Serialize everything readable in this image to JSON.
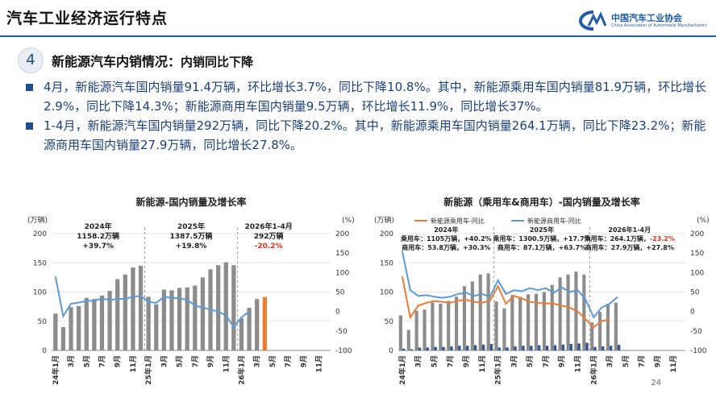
{
  "header": {
    "title": "汽车工业经济运行特点",
    "logo_cn": "中国汽车工业协会",
    "logo_en": "China Association of Automobile Manufacturers"
  },
  "section": {
    "number": "4",
    "title": "新能源汽车内销情况：",
    "subtitle": "内销同比下降"
  },
  "bullets": [
    "4月，新能源汽车国内销量91.4万辆，环比增长3.7%，同比下降10.8%。其中，新能源乘用车国内销量81.9万辆，环比增长2.9%，同比下降14.3%；新能源商用车国内销量9.5万辆，环比增长11.9%，同比增长37%。",
    "1-4月，新能源汽车国内销量292万辆，同比下降20.2%。其中，新能源乘用车国内销量264.1万辆，同比下降23.2%；新能源商用车国内销量27.9万辆，同比增长27.8%。"
  ],
  "page_number": "24",
  "colors": {
    "brand": "#1f5ba8",
    "bar": "#8c8c8c",
    "highlight_bar": "#ed7d31",
    "line_blue": "#5b9bd5",
    "line_orange": "#ed7d31",
    "negative_red": "#e03020",
    "commercial_bar": "#2f5597"
  },
  "chart_data": [
    {
      "type": "bar",
      "title": "新能源-国内销量及增长率",
      "ylabel": "(万辆)",
      "y2label": "(%)",
      "ylim": [
        0,
        200
      ],
      "y2lim": [
        -100,
        200
      ],
      "yticks": [
        "0",
        "50",
        "100",
        "150",
        "200"
      ],
      "y2ticks": [
        "-100",
        "-50",
        "0",
        "50",
        "100",
        "150",
        "200"
      ],
      "tick_labels": [
        "2024年1月",
        "3月",
        "5月",
        "7月",
        "9月",
        "11月",
        "2025年1月",
        "3月",
        "5月",
        "7月",
        "9月",
        "11月",
        "2026年1月",
        "3月",
        "5月",
        "7月",
        "9月",
        "11月"
      ],
      "series": [
        {
          "name": "",
          "kind": "bar",
          "values": [
            63,
            40,
            74,
            76,
            90,
            88,
            94,
            102,
            122,
            130,
            142,
            145,
            92,
            79,
            104,
            103,
            107,
            108,
            111,
            125,
            139,
            146,
            151,
            146,
            55,
            73,
            88,
            91.4,
            null,
            null,
            null,
            null,
            null,
            null,
            null,
            null
          ]
        },
        {
          "name": "",
          "kind": "line",
          "values": [
            90,
            -12,
            20,
            23,
            27,
            28,
            33,
            30,
            32,
            33,
            38,
            40,
            25,
            22,
            38,
            35,
            34,
            30,
            15,
            10,
            5,
            0,
            -10,
            -40,
            -15,
            0,
            null,
            null,
            null,
            null,
            null,
            null,
            null,
            null,
            null,
            null
          ]
        }
      ],
      "annotations": [
        {
          "year": "2024年",
          "total": "1158.2万辆",
          "growth": "+39.7%"
        },
        {
          "year": "2025年",
          "total": "1387.5万辆",
          "growth": "+19.8%"
        },
        {
          "year": "2026年1-4月",
          "total": "292万辆",
          "growth": "-20.2%"
        }
      ]
    },
    {
      "type": "bar",
      "title": "新能源（乘用车&商用车）-国内销量及增长率",
      "ylabel": "(万辆)",
      "y2label": "(%)",
      "ylim": [
        0,
        200
      ],
      "y2lim": [
        -100,
        200
      ],
      "yticks": [
        "0",
        "50",
        "100",
        "150",
        "200"
      ],
      "y2ticks": [
        "-100",
        "-50",
        "0",
        "50",
        "100",
        "150",
        "200"
      ],
      "tick_labels": [
        "2024年1月",
        "3月",
        "5月",
        "7月",
        "9月",
        "11月",
        "2025年1月",
        "3月",
        "5月",
        "7月",
        "9月",
        "11月",
        "2026年1月",
        "3月",
        "5月",
        "7月",
        "9月",
        "11月"
      ],
      "legend": [
        "新能源乘用车-同比",
        "新能源商用车-同比"
      ],
      "series": [
        {
          "name": "乘用车",
          "kind": "bar",
          "values": [
            60,
            35,
            68,
            70,
            82,
            80,
            85,
            92,
            110,
            118,
            130,
            132,
            84,
            72,
            95,
            92,
            96,
            97,
            100,
            112,
            125,
            130,
            135,
            130,
            48,
            66,
            80,
            81.9,
            null,
            null,
            null,
            null,
            null,
            null,
            null,
            null
          ]
        },
        {
          "name": "商用车",
          "kind": "bar",
          "values": [
            3,
            2,
            5,
            5,
            6,
            6,
            7,
            8,
            8,
            9,
            10,
            11,
            5,
            5,
            7,
            8,
            8,
            9,
            8,
            9,
            10,
            11,
            12,
            13,
            6,
            7,
            8,
            9.5,
            null,
            null,
            null,
            null,
            null,
            null,
            null,
            null
          ]
        },
        {
          "name": "新能源乘用车-同比",
          "kind": "line",
          "values": [
            90,
            -15,
            15,
            22,
            27,
            25,
            22,
            28,
            30,
            25,
            22,
            28,
            65,
            20,
            40,
            33,
            25,
            22,
            21,
            20,
            15,
            10,
            0,
            -20,
            -40,
            -25,
            -20,
            null,
            null,
            null,
            null,
            null,
            null,
            null,
            null,
            null
          ]
        },
        {
          "name": "新能源商用车-同比",
          "kind": "line",
          "values": [
            155,
            55,
            40,
            42,
            38,
            35,
            38,
            45,
            48,
            40,
            45,
            38,
            80,
            45,
            55,
            52,
            60,
            55,
            60,
            48,
            62,
            50,
            55,
            30,
            -15,
            10,
            20,
            37,
            null,
            null,
            null,
            null,
            null,
            null,
            null,
            null
          ]
        }
      ],
      "annotations": [
        {
          "year": "2024年",
          "passenger": "乘用车：1105万辆，+40.2%",
          "commercial": "商用车：53.8万辆，+30.3%"
        },
        {
          "year": "2025年",
          "passenger": "乘用车：1300.5万辆，+17.7%",
          "commercial": "商用车：87.1万辆，+63.7%"
        },
        {
          "year": "2026年1-4月",
          "passenger": "乘用车：264.1万辆，",
          "passenger_growth": "-23.2%",
          "commercial": "商用车：27.9万辆，+27.8%"
        }
      ]
    }
  ]
}
